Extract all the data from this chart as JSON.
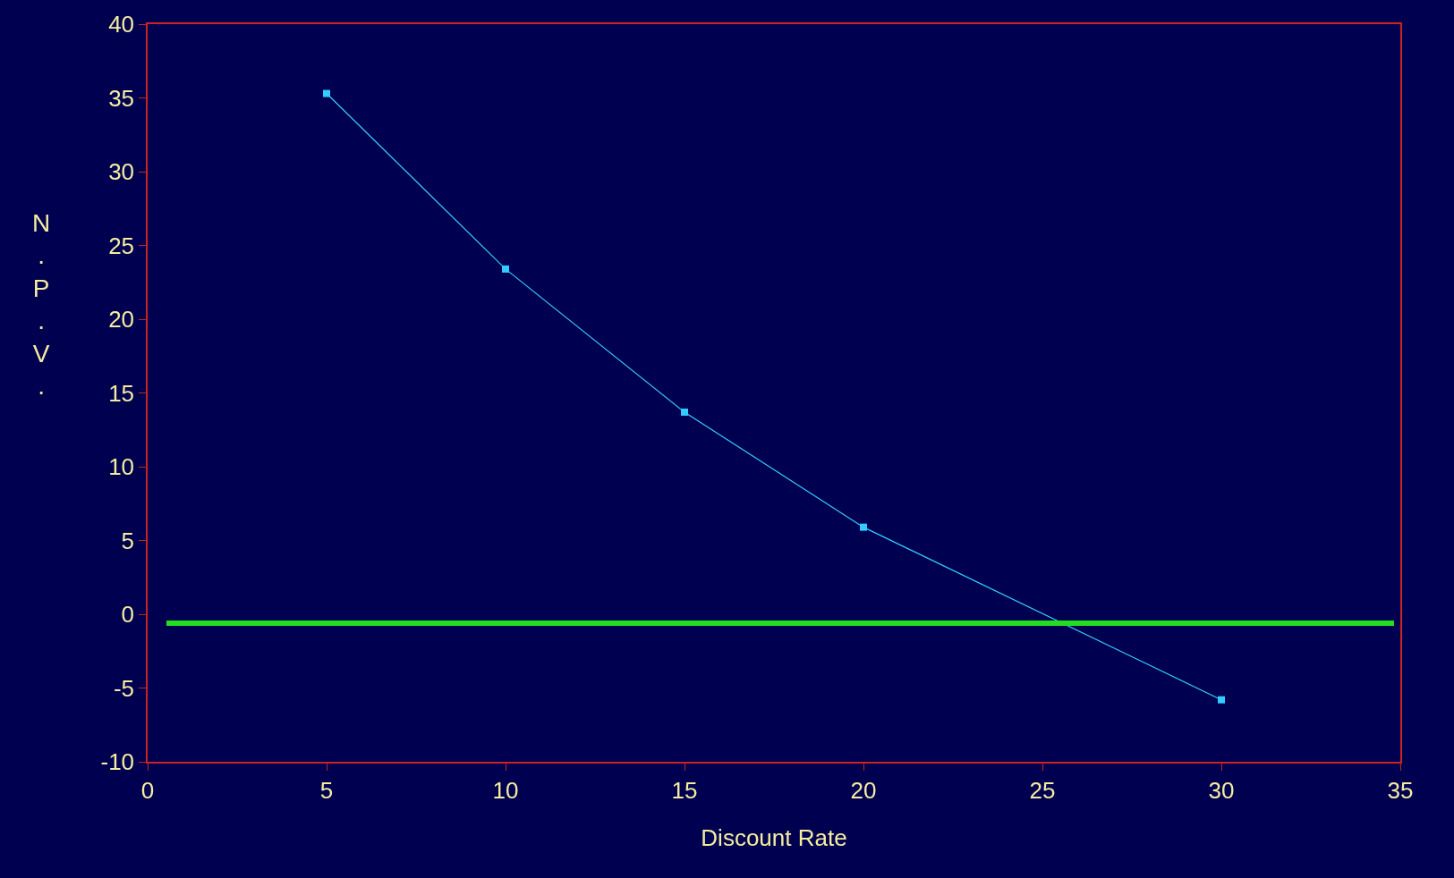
{
  "chart_data": {
    "type": "line",
    "xlabel": "Discount Rate",
    "ylabel": "N.P.V.",
    "x": [
      5,
      10,
      15,
      20,
      25,
      30
    ],
    "series": [
      {
        "color": "#33ccff",
        "values": [
          35.3,
          23.4,
          13.7,
          5.9,
          null,
          -5.8
        ]
      }
    ],
    "xlim": [
      0,
      35
    ],
    "xticks": [
      0,
      5,
      10,
      15,
      20,
      25,
      30,
      35
    ],
    "ylim": [
      -10,
      40
    ],
    "yticks": [
      -10,
      -5,
      0,
      5,
      10,
      15,
      20,
      25,
      30,
      35,
      40
    ],
    "ref_lines": [
      {
        "axis": "y",
        "value": -0.6,
        "color": "#22dd22",
        "line_style": "solid"
      }
    ],
    "marker": "square",
    "line_style": "solid",
    "grid": false
  }
}
